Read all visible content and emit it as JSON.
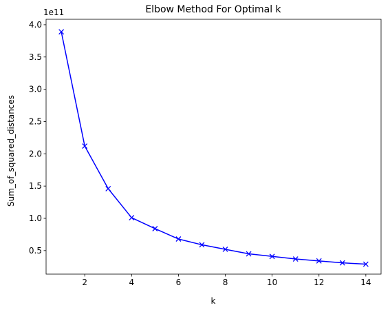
{
  "chart_data": {
    "type": "line",
    "title": "Elbow Method For Optimal k",
    "xlabel": "k",
    "ylabel": "Sum_of_squared_distances",
    "y_offset_text": "1e11",
    "xlim": [
      0.35,
      14.65
    ],
    "ylim": [
      0.1355,
      4.0845
    ],
    "x_ticks": [
      2,
      4,
      6,
      8,
      10,
      12,
      14
    ],
    "x_tick_labels": [
      "2",
      "4",
      "6",
      "8",
      "10",
      "12",
      "14"
    ],
    "y_ticks": [
      0.5,
      1.0,
      1.5,
      2.0,
      2.5,
      3.0,
      3.5,
      4.0
    ],
    "y_tick_labels": [
      "0.5",
      "1.0",
      "1.5",
      "2.0",
      "2.5",
      "3.0",
      "3.5",
      "4.0"
    ],
    "grid": false,
    "series": [
      {
        "color": "#0000ff",
        "marker": "x",
        "x": [
          1,
          2,
          3,
          4,
          5,
          6,
          7,
          8,
          9,
          10,
          11,
          12,
          13,
          14
        ],
        "y": [
          3.89,
          2.12,
          1.46,
          1.01,
          0.84,
          0.68,
          0.59,
          0.52,
          0.45,
          0.41,
          0.37,
          0.34,
          0.31,
          0.29
        ]
      }
    ]
  }
}
